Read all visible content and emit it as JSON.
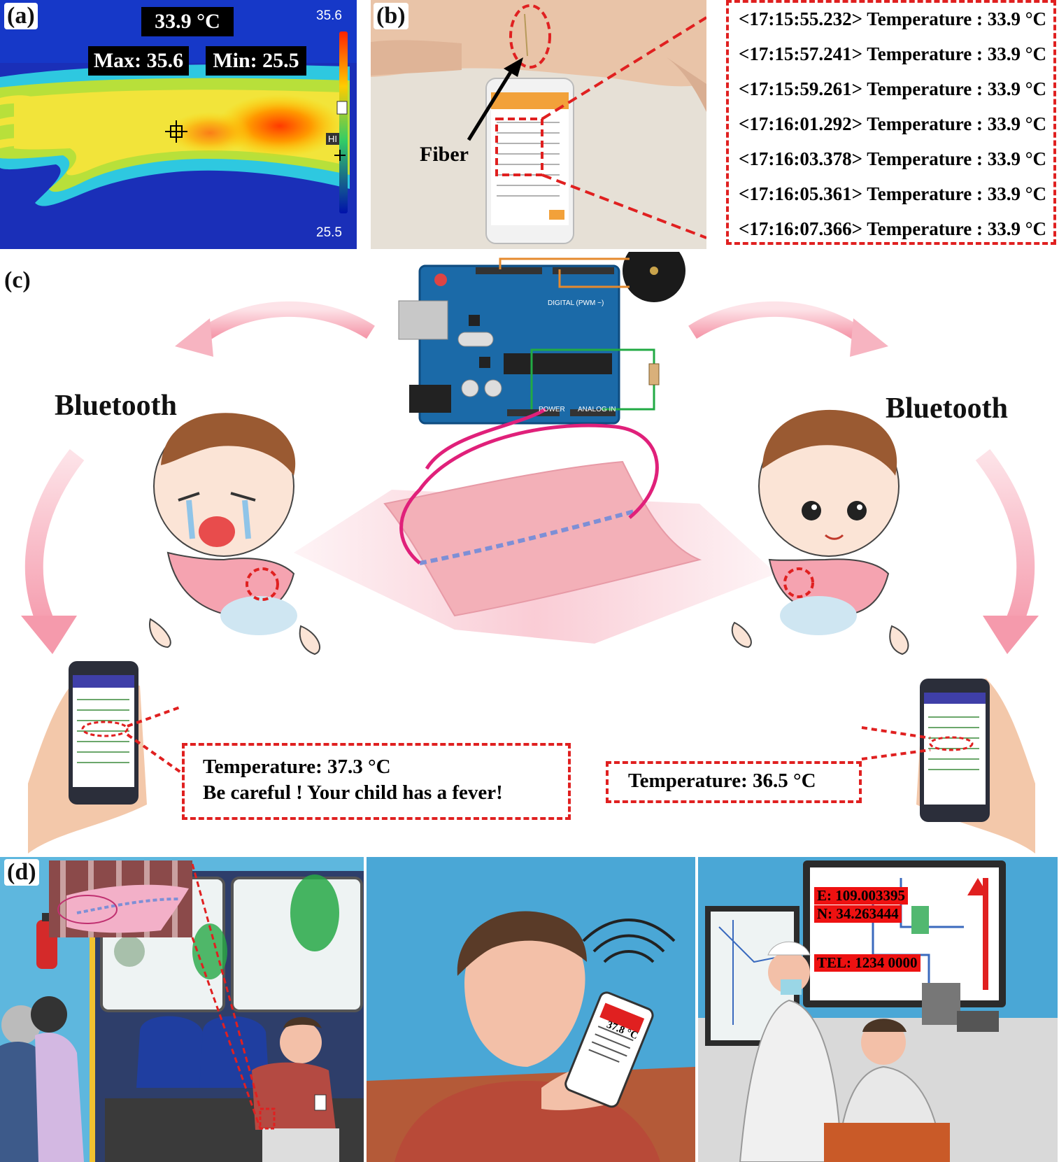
{
  "panel_a": {
    "label": "(a)",
    "center_temp": "33.9 °C",
    "max_label": "Max: 35.6",
    "min_label": "Min: 25.5",
    "scale_top": "35.6",
    "scale_bottom": "25.5",
    "hi_marker": "HI"
  },
  "panel_b": {
    "label": "(b)",
    "fiber_label": "Fiber",
    "log_entries": [
      "<17:15:55.232> Temperature : 33.9 °C",
      "<17:15:57.241> Temperature : 33.9 °C",
      "<17:15:59.261> Temperature : 33.9 °C",
      "<17:16:01.292> Temperature : 33.9 °C",
      "<17:16:03.378> Temperature : 33.9 °C",
      "<17:16:05.361> Temperature : 33.9 °C",
      "<17:16:07.366> Temperature : 33.9 °C"
    ]
  },
  "panel_c": {
    "label": "(c)",
    "bluetooth_left": "Bluetooth",
    "bluetooth_right": "Bluetooth",
    "fever_line1": "Temperature: 37.3 °C",
    "fever_line2": "Be careful ! Your child has a fever!",
    "normal_line": "Temperature: 36.5 °C",
    "board_power": "POWER",
    "board_analog": "ANALOG IN",
    "board_digital": "DIGITAL (PWM ~)"
  },
  "panel_d": {
    "label": "(d)",
    "phone_temp": "37.8 °C",
    "coord_e": "E: 109.003395",
    "coord_n": "N: 34.263444",
    "tel": "TEL: 1234 0000"
  },
  "colors": {
    "accent_red": "#e02020",
    "arrow_pink": "#f5a0b0",
    "board_blue": "#1b6aa8",
    "fabric_pink": "#f3b0b8",
    "sky_blue": "#4aa7d6"
  }
}
